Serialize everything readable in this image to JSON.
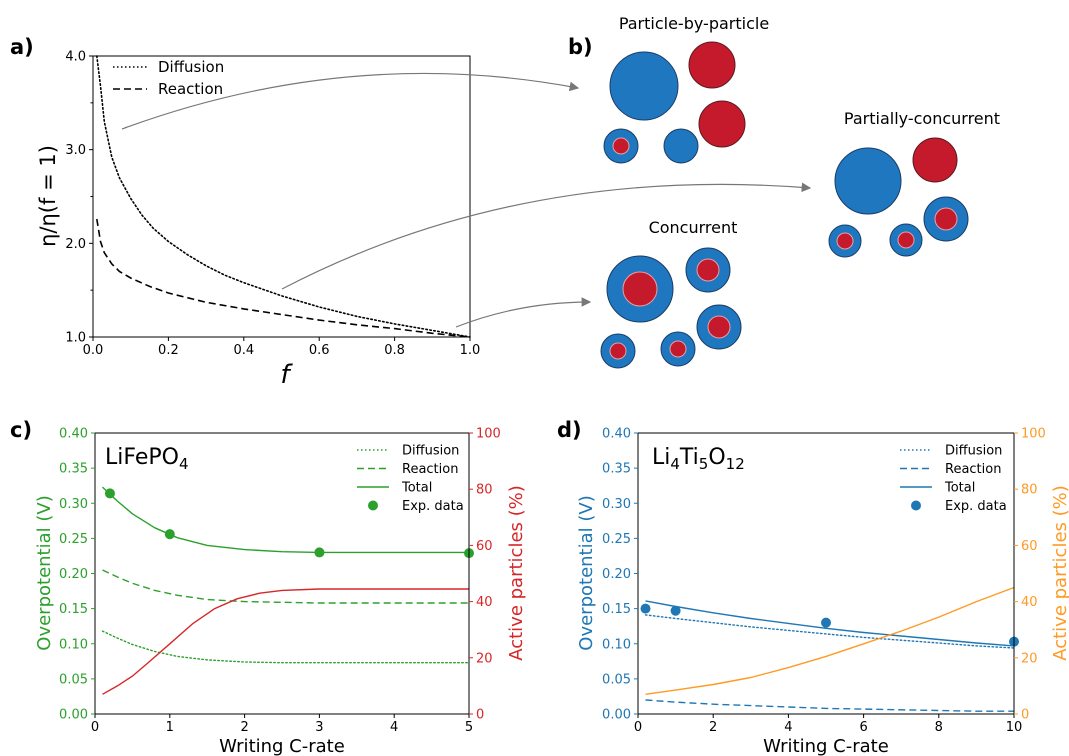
{
  "panel_labels": {
    "a": "a)",
    "b": "b)",
    "c": "c)",
    "d": "d)"
  },
  "colors": {
    "particle_blue": "#1f77c0",
    "particle_red": "#c41a2c",
    "green": "#2ca02c",
    "red_axis": "#d62728",
    "blue": "#1f77b4",
    "orange": "#ff9a24",
    "black": "#000000"
  },
  "schematic": {
    "particle_by_particle": "Particle-by-particle",
    "partially_concurrent": "Partially-concurrent",
    "concurrent": "Concurrent"
  },
  "chart_data": [
    {
      "panel": "a",
      "type": "line",
      "xlabel": "f",
      "ylabel": "η/η(f = 1)",
      "xlim": [
        0,
        1
      ],
      "ylim": [
        1,
        4
      ],
      "xticks": [
        "0.0",
        "0.2",
        "0.4",
        "0.6",
        "0.8",
        "1.0"
      ],
      "yticks": [
        "1.0",
        "2.0",
        "3.0",
        "4.0"
      ],
      "legend_position": "upper-left",
      "series": [
        {
          "name": "Diffusion",
          "style": "dotted",
          "x": [
            0.01,
            0.02,
            0.03,
            0.05,
            0.07,
            0.1,
            0.13,
            0.16,
            0.2,
            0.25,
            0.3,
            0.35,
            0.4,
            0.5,
            0.6,
            0.7,
            0.8,
            0.9,
            1.0
          ],
          "y": [
            4.0,
            3.68,
            3.3,
            2.92,
            2.7,
            2.48,
            2.3,
            2.16,
            2.02,
            1.88,
            1.76,
            1.66,
            1.58,
            1.44,
            1.32,
            1.22,
            1.14,
            1.07,
            1.0
          ]
        },
        {
          "name": "Reaction",
          "style": "dashed",
          "x": [
            0.01,
            0.02,
            0.03,
            0.05,
            0.07,
            0.1,
            0.15,
            0.2,
            0.25,
            0.3,
            0.4,
            0.5,
            0.6,
            0.7,
            0.8,
            0.9,
            1.0
          ],
          "y": [
            2.26,
            2.02,
            1.9,
            1.78,
            1.7,
            1.63,
            1.54,
            1.47,
            1.42,
            1.37,
            1.3,
            1.24,
            1.18,
            1.13,
            1.09,
            1.04,
            1.0
          ]
        }
      ]
    },
    {
      "panel": "c",
      "type": "line",
      "title": "LiFePO4",
      "xlabel": "Writing C-rate",
      "ylabel": "Overpotential (V)",
      "y2label": "Active particles (%)",
      "xlim": [
        0,
        5
      ],
      "ylim": [
        0,
        0.4
      ],
      "y2lim": [
        0,
        100
      ],
      "xticks": [
        "0",
        "1",
        "2",
        "3",
        "4",
        "5"
      ],
      "yticks": [
        "0.00",
        "0.05",
        "0.10",
        "0.15",
        "0.20",
        "0.25",
        "0.30",
        "0.35",
        "0.40"
      ],
      "y2ticks": [
        "0",
        "20",
        "40",
        "60",
        "80",
        "100"
      ],
      "legend_position": "upper-right",
      "series": [
        {
          "name": "Diffusion",
          "style": "dotted",
          "axis": "left",
          "x": [
            0.1,
            0.3,
            0.5,
            0.8,
            1.1,
            1.5,
            2.0,
            2.5,
            3.0,
            3.5,
            4.0,
            4.5,
            5.0
          ],
          "y": [
            0.118,
            0.108,
            0.099,
            0.089,
            0.082,
            0.077,
            0.074,
            0.073,
            0.073,
            0.073,
            0.073,
            0.073,
            0.073
          ]
        },
        {
          "name": "Reaction",
          "style": "dashed",
          "axis": "left",
          "x": [
            0.1,
            0.3,
            0.5,
            0.8,
            1.1,
            1.5,
            2.0,
            2.5,
            3.0,
            3.5,
            4.0,
            4.5,
            5.0
          ],
          "y": [
            0.205,
            0.195,
            0.186,
            0.176,
            0.169,
            0.163,
            0.16,
            0.159,
            0.158,
            0.158,
            0.158,
            0.158,
            0.158
          ]
        },
        {
          "name": "Total",
          "style": "solid",
          "axis": "left",
          "x": [
            0.1,
            0.3,
            0.5,
            0.8,
            1.1,
            1.5,
            2.0,
            2.5,
            3.0,
            3.5,
            4.0,
            4.5,
            5.0
          ],
          "y": [
            0.323,
            0.303,
            0.285,
            0.265,
            0.251,
            0.24,
            0.234,
            0.231,
            0.23,
            0.23,
            0.23,
            0.23,
            0.23
          ]
        },
        {
          "name": "Exp. data",
          "style": "markers",
          "axis": "left",
          "x": [
            0.2,
            1.0,
            3.0,
            5.0
          ],
          "y": [
            0.314,
            0.256,
            0.23,
            0.229
          ]
        },
        {
          "name": "",
          "style": "solid",
          "axis": "right",
          "x": [
            0.1,
            0.3,
            0.5,
            0.7,
            1.0,
            1.3,
            1.6,
            1.9,
            2.2,
            2.5,
            3.0,
            3.5,
            4.0,
            5.0
          ],
          "y": [
            7,
            10,
            13.5,
            18,
            25,
            32,
            37.5,
            41,
            43,
            44,
            44.5,
            44.5,
            44.5,
            44.5
          ]
        }
      ]
    },
    {
      "panel": "d",
      "type": "line",
      "title": "Li4Ti5O12",
      "xlabel": "Writing C-rate",
      "ylabel": "Overpotential (V)",
      "y2label": "Active particles (%)",
      "xlim": [
        0,
        10
      ],
      "ylim": [
        0,
        0.4
      ],
      "y2lim": [
        0,
        100
      ],
      "xticks": [
        "0",
        "2",
        "4",
        "6",
        "8",
        "10"
      ],
      "yticks": [
        "0.00",
        "0.05",
        "0.10",
        "0.15",
        "0.20",
        "0.25",
        "0.30",
        "0.35",
        "0.40"
      ],
      "y2ticks": [
        "0",
        "20",
        "40",
        "60",
        "80",
        "100"
      ],
      "legend_position": "upper-right",
      "series": [
        {
          "name": "Diffusion",
          "style": "dotted",
          "axis": "left",
          "x": [
            0.2,
            1,
            2,
            3,
            4,
            5,
            6,
            7,
            8,
            9,
            10
          ],
          "y": [
            0.141,
            0.136,
            0.13,
            0.124,
            0.119,
            0.114,
            0.109,
            0.105,
            0.101,
            0.097,
            0.094
          ]
        },
        {
          "name": "Reaction",
          "style": "dashed",
          "axis": "left",
          "x": [
            0.2,
            1,
            2,
            3,
            4,
            5,
            6,
            7,
            8,
            9,
            10
          ],
          "y": [
            0.02,
            0.017,
            0.014,
            0.012,
            0.01,
            0.008,
            0.007,
            0.006,
            0.005,
            0.004,
            0.004
          ]
        },
        {
          "name": "Total",
          "style": "solid",
          "axis": "left",
          "x": [
            0.2,
            1,
            2,
            3,
            4,
            5,
            6,
            7,
            8,
            9,
            10
          ],
          "y": [
            0.161,
            0.153,
            0.144,
            0.136,
            0.129,
            0.122,
            0.116,
            0.111,
            0.106,
            0.101,
            0.097
          ]
        },
        {
          "name": "Exp. data",
          "style": "markers",
          "axis": "left",
          "x": [
            0.2,
            1,
            5,
            10
          ],
          "y": [
            0.15,
            0.147,
            0.13,
            0.103
          ]
        },
        {
          "name": "",
          "style": "solid",
          "axis": "right",
          "x": [
            0.2,
            1,
            2,
            3,
            4,
            5,
            6,
            7,
            8,
            9,
            10
          ],
          "y": [
            7,
            8.5,
            10.5,
            13,
            16.5,
            20.5,
            25,
            29.5,
            34.5,
            40,
            45
          ]
        }
      ]
    }
  ]
}
